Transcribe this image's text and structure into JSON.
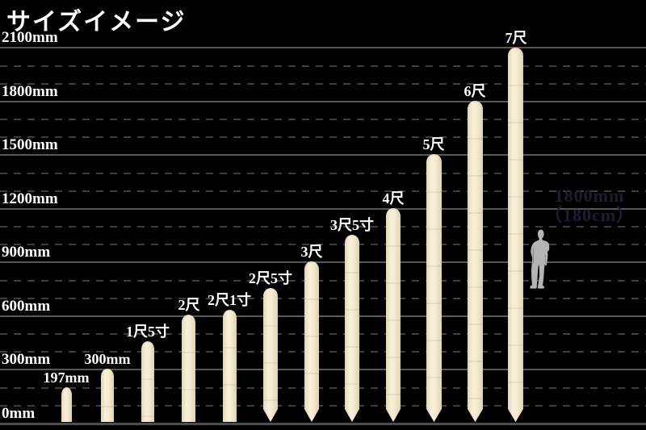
{
  "title": "サイズイメージ",
  "colors": {
    "background": "#000000",
    "label": "#ffffff",
    "grid_major": "#575757",
    "grid_minor": "#3e3e3e",
    "baseline": "#4d4d4d",
    "stake_fill": "#f3ead0",
    "stake_shade": "#e0d3ae",
    "figure_fill": "#b4b4b4",
    "figure_text": "#1e1e32"
  },
  "chart_data": {
    "type": "bar",
    "title": "サイズイメージ",
    "ylabel": "",
    "xlabel": "",
    "unit": "mm",
    "ylim": [
      0,
      2100
    ],
    "grid": "on",
    "minor_grid_step_mm": 100,
    "major_grid_step_mm": 300,
    "axis_ticks": [
      {
        "label": "2100mm",
        "value_mm": 2100
      },
      {
        "label": "1800mm",
        "value_mm": 1800
      },
      {
        "label": "1500mm",
        "value_mm": 1500
      },
      {
        "label": "1200mm",
        "value_mm": 1200
      },
      {
        "label": "900mm",
        "value_mm": 900
      },
      {
        "label": "600mm",
        "value_mm": 600
      },
      {
        "label": "300mm",
        "value_mm": 300
      },
      {
        "label": "0mm",
        "value_mm": 0
      }
    ],
    "stakes": [
      {
        "label": "197mm",
        "height_mm": 197,
        "tip": "flat"
      },
      {
        "label": "300mm",
        "height_mm": 300,
        "tip": "flat"
      },
      {
        "label": "1尺5寸",
        "height_mm": 455,
        "tip": "flat"
      },
      {
        "label": "2尺",
        "height_mm": 606,
        "tip": "flat"
      },
      {
        "label": "2尺1寸",
        "height_mm": 636,
        "tip": "flat"
      },
      {
        "label": "2尺5寸",
        "height_mm": 758,
        "tip": "pointed"
      },
      {
        "label": "3尺",
        "height_mm": 909,
        "tip": "pointed"
      },
      {
        "label": "3尺5寸",
        "height_mm": 1061,
        "tip": "pointed"
      },
      {
        "label": "4尺",
        "height_mm": 1212,
        "tip": "pointed"
      },
      {
        "label": "5尺",
        "height_mm": 1515,
        "tip": "pointed"
      },
      {
        "label": "6尺",
        "height_mm": 1818,
        "tip": "pointed"
      },
      {
        "label": "7尺",
        "height_mm": 2121,
        "tip": "pointed"
      }
    ],
    "reference_figure": {
      "type": "human-silhouette",
      "height_mm": 1800,
      "label_line1": "1800mm",
      "label_line2": "（180cm）"
    }
  }
}
